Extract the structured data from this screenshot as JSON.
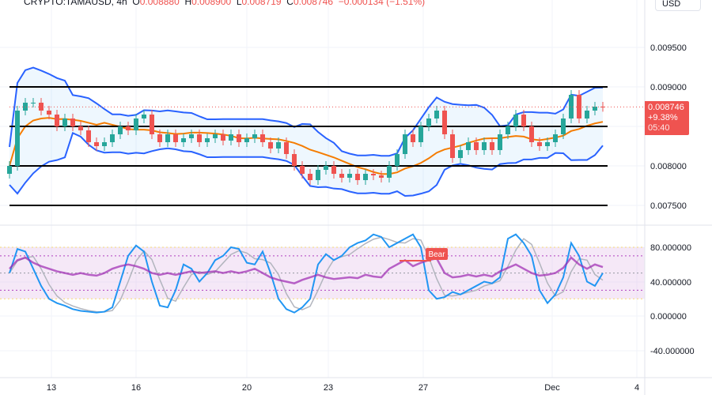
{
  "header": {
    "symbol": "CRYPTO:TAMAUSD, 4h",
    "o_label": "O",
    "o": "0.008880",
    "h_label": "H",
    "h": "0.008900",
    "l_label": "L",
    "l": "0.008719",
    "c_label": "C",
    "c": "0.008746",
    "change": "−0.000134 (−1.51%)"
  },
  "currency_button": "USD",
  "price_label": {
    "price": "0.008746",
    "change": "+9.38%",
    "countdown": "05:40"
  },
  "colors": {
    "up": "#26a69a",
    "down": "#ef5350",
    "bb": "#2962ff",
    "ma": "#f57c00",
    "stoch_k": "#2196f3",
    "stoch_d": "#b2b5be",
    "rsi": "#9c27b0",
    "band_fill": "#e1bee7"
  },
  "chart_data": {
    "type": "candlestick",
    "price_axis": {
      "ticks": [
        "0.009500",
        "0.009000",
        "0.008000",
        "0.007500"
      ],
      "range": [
        0.0072,
        0.01
      ]
    },
    "x_axis": {
      "ticks": [
        "13",
        "16",
        "20",
        "23",
        "27",
        "Dec",
        "4"
      ]
    },
    "horizontal_levels": [
      0.009,
      0.0085,
      0.008,
      0.0075
    ],
    "closes": [
      0.008,
      0.0087,
      0.0088,
      0.0088,
      0.0087,
      0.00865,
      0.0085,
      0.0086,
      0.0085,
      0.00845,
      0.0083,
      0.00825,
      0.0083,
      0.0084,
      0.0085,
      0.00845,
      0.0086,
      0.00865,
      0.0084,
      0.0083,
      0.0084,
      0.0083,
      0.00835,
      0.0084,
      0.0083,
      0.00835,
      0.0084,
      0.00832,
      0.0084,
      0.0083,
      0.00835,
      0.0084,
      0.0083,
      0.00822,
      0.0083,
      0.00815,
      0.008,
      0.0079,
      0.00782,
      0.00795,
      0.008,
      0.0079,
      0.00785,
      0.0079,
      0.00782,
      0.0079,
      0.00788,
      0.00785,
      0.008,
      0.00815,
      0.0084,
      0.0083,
      0.0085,
      0.0086,
      0.0087,
      0.0084,
      0.0081,
      0.0082,
      0.0083,
      0.0082,
      0.0083,
      0.0082,
      0.0084,
      0.0085,
      0.00865,
      0.0085,
      0.0083,
      0.00825,
      0.0083,
      0.0084,
      0.0086,
      0.0089,
      0.0086,
      0.0087,
      0.00875,
      0.008746
    ],
    "oscillator": {
      "axis_ticks": [
        "80.000000",
        "40.000000",
        "0.000000",
        "-40.000000"
      ],
      "range": [
        -60,
        105
      ],
      "levels": [
        80,
        70,
        50,
        30,
        20
      ],
      "stoch_k": [
        50,
        78,
        75,
        55,
        35,
        20,
        15,
        12,
        8,
        6,
        5,
        4,
        5,
        10,
        40,
        70,
        82,
        75,
        40,
        12,
        10,
        30,
        60,
        55,
        40,
        50,
        65,
        70,
        80,
        78,
        62,
        60,
        75,
        50,
        20,
        8,
        4,
        10,
        20,
        60,
        72,
        65,
        70,
        80,
        85,
        88,
        95,
        92,
        80,
        85,
        90,
        95,
        80,
        30,
        20,
        22,
        28,
        25,
        30,
        35,
        40,
        38,
        45,
        90,
        95,
        85,
        70,
        30,
        15,
        25,
        45,
        85,
        70,
        40,
        35,
        50
      ],
      "rsi": [
        55,
        65,
        68,
        62,
        58,
        55,
        52,
        50,
        48,
        50,
        48,
        47,
        50,
        55,
        58,
        60,
        58,
        55,
        50,
        48,
        50,
        48,
        50,
        52,
        50,
        51,
        52,
        50,
        52,
        50,
        52,
        55,
        50,
        45,
        42,
        40,
        38,
        42,
        45,
        48,
        45,
        43,
        44,
        45,
        44,
        48,
        46,
        45,
        55,
        60,
        65,
        58,
        62,
        65,
        67,
        50,
        45,
        46,
        48,
        46,
        48,
        46,
        52,
        56,
        60,
        55,
        50,
        47,
        48,
        50,
        56,
        68,
        60,
        55,
        60,
        57
      ],
      "signal_label": "Bear"
    }
  }
}
